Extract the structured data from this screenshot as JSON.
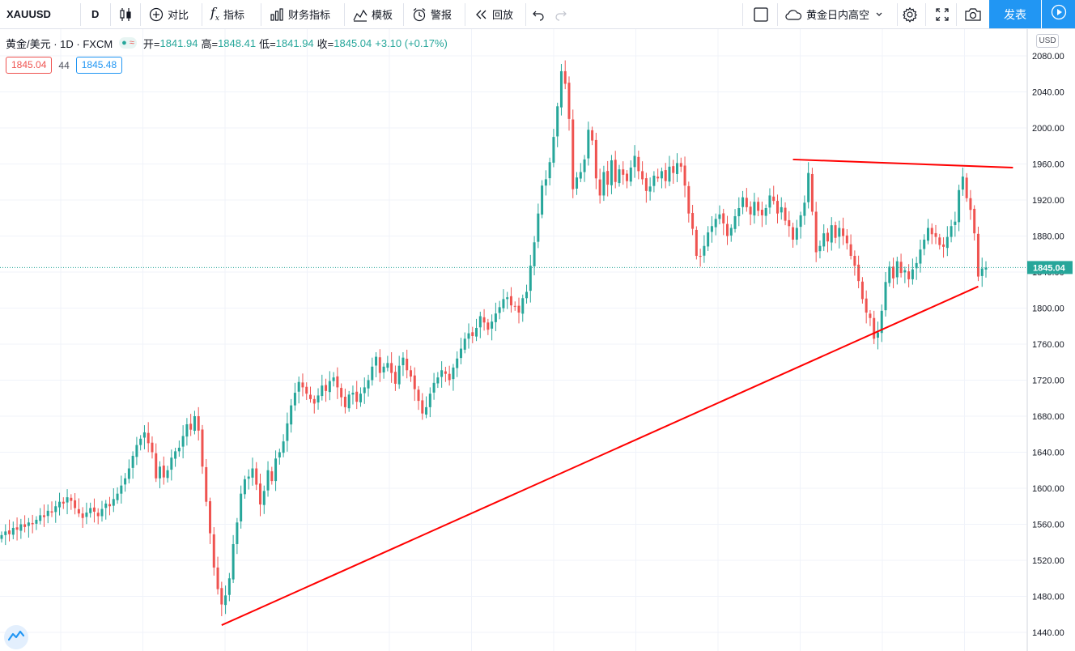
{
  "toolbar": {
    "symbol": "XAUUSD",
    "interval": "D",
    "compare_label": "对比",
    "indicators_label": "指标",
    "financials_label": "财务指标",
    "templates_label": "模板",
    "alert_label": "警报",
    "replay_label": "回放",
    "layout_name": "黄金日内高空",
    "publish_label": "发表"
  },
  "legend": {
    "title": "黄金/美元 · 1D · FXCM",
    "open_label": "开=",
    "open": "1841.94",
    "high_label": "高=",
    "high": "1848.41",
    "low_label": "低=",
    "low": "1841.94",
    "close_label": "收=",
    "close": "1845.04",
    "change": "+3.10 (+0.17%)",
    "status_symbol": "●",
    "status_wave": "≈"
  },
  "bidask": {
    "bid": "1845.04",
    "spread": "44",
    "ask": "1845.48"
  },
  "price_scale": {
    "currency": "USD",
    "last_price": "1845.04"
  },
  "colors": {
    "up": "#26a69a",
    "down": "#ef5350",
    "trendline": "#ff0000",
    "accent": "#2196f3",
    "grid": "#f0f3fa"
  },
  "chart_data": {
    "type": "candlestick",
    "title": "黄金/美元 · 1D · FXCM",
    "y_ticks": [
      1440,
      1480,
      1520,
      1560,
      1600,
      1640,
      1680,
      1720,
      1760,
      1800,
      1840,
      1880,
      1920,
      1960,
      2000,
      2040,
      2080
    ],
    "ylim": [
      1428,
      2092
    ],
    "last_price": 1845.04,
    "closes": [
      1548,
      1552,
      1549,
      1556,
      1554,
      1560,
      1557,
      1562,
      1560,
      1565,
      1570,
      1568,
      1575,
      1573,
      1580,
      1585,
      1583,
      1590,
      1586,
      1578,
      1572,
      1567,
      1573,
      1578,
      1574,
      1569,
      1577,
      1583,
      1580,
      1588,
      1594,
      1603,
      1611,
      1622,
      1636,
      1648,
      1655,
      1662,
      1650,
      1640,
      1611,
      1624,
      1612,
      1620,
      1634,
      1641,
      1645,
      1658,
      1671,
      1665,
      1680,
      1664,
      1624,
      1585,
      1550,
      1512,
      1488,
      1471,
      1481,
      1500,
      1538,
      1562,
      1594,
      1610,
      1613,
      1622,
      1604,
      1582,
      1597,
      1620,
      1608,
      1633,
      1640,
      1652,
      1672,
      1692,
      1706,
      1718,
      1712,
      1705,
      1699,
      1694,
      1703,
      1714,
      1708,
      1719,
      1723,
      1712,
      1701,
      1690,
      1704,
      1706,
      1696,
      1705,
      1712,
      1720,
      1735,
      1746,
      1728,
      1735,
      1739,
      1728,
      1716,
      1736,
      1745,
      1731,
      1724,
      1710,
      1697,
      1683,
      1690,
      1705,
      1717,
      1723,
      1731,
      1727,
      1720,
      1734,
      1744,
      1755,
      1766,
      1772,
      1769,
      1778,
      1791,
      1784,
      1776,
      1785,
      1794,
      1801,
      1810,
      1812,
      1803,
      1802,
      1795,
      1811,
      1818,
      1847,
      1873,
      1905,
      1936,
      1943,
      1962,
      1990,
      2024,
      2063,
      2049,
      2010,
      1932,
      1945,
      1951,
      1965,
      1998,
      1986,
      1944,
      1925,
      1951,
      1937,
      1964,
      1940,
      1954,
      1948,
      1941,
      1956,
      1969,
      1952,
      1943,
      1930,
      1935,
      1947,
      1944,
      1952,
      1941,
      1957,
      1950,
      1961,
      1957,
      1936,
      1905,
      1888,
      1858,
      1857,
      1869,
      1884,
      1891,
      1899,
      1904,
      1894,
      1880,
      1889,
      1902,
      1911,
      1923,
      1912,
      1904,
      1918,
      1908,
      1903,
      1911,
      1925,
      1919,
      1905,
      1912,
      1897,
      1891,
      1876,
      1889,
      1903,
      1917,
      1950,
      1907,
      1862,
      1869,
      1883,
      1874,
      1892,
      1878,
      1889,
      1880,
      1872,
      1858,
      1847,
      1830,
      1810,
      1795,
      1789,
      1766,
      1773,
      1797,
      1829,
      1846,
      1833,
      1852,
      1839,
      1842,
      1832,
      1843,
      1850,
      1865,
      1876,
      1889,
      1882,
      1879,
      1870,
      1868,
      1879,
      1891,
      1896,
      1931,
      1946,
      1922,
      1909,
      1883,
      1835,
      1844,
      1845
    ]
  },
  "trendlines": [
    {
      "name": "support",
      "from": [
        57,
        1448
      ],
      "to": [
        253,
        1824
      ]
    },
    {
      "name": "resistance",
      "from": [
        205,
        1965
      ],
      "to": [
        262,
        1956
      ]
    }
  ]
}
